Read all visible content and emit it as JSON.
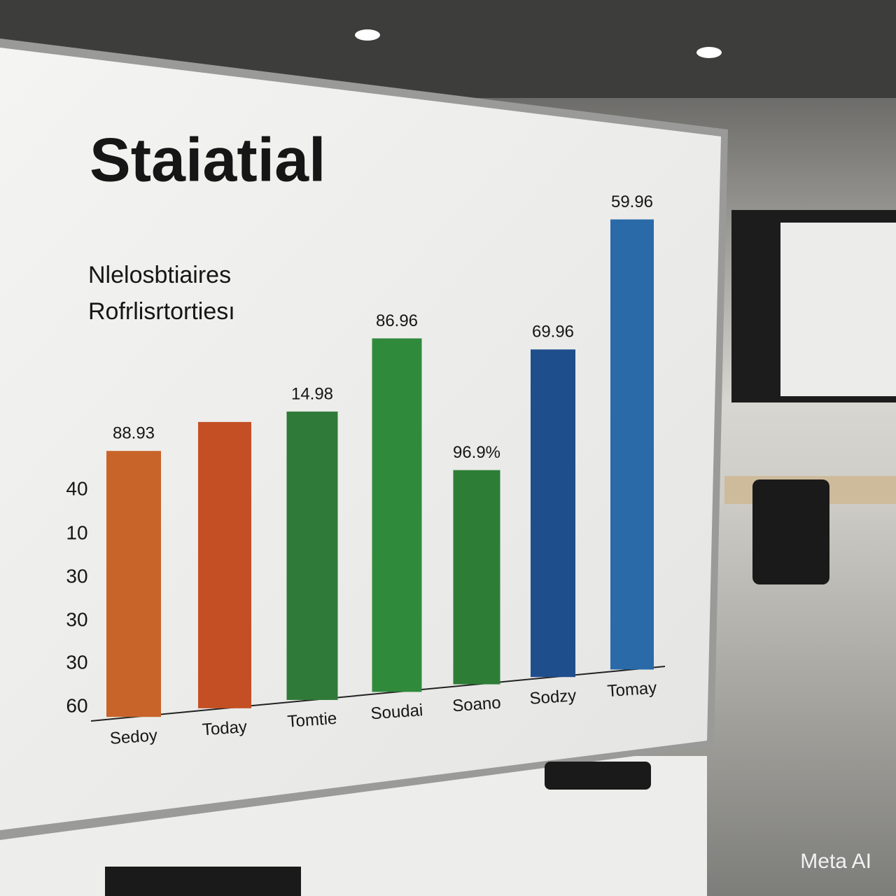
{
  "chart_data": {
    "type": "bar",
    "title": "Staiatial",
    "subtitle": [
      "Nlelosbtiaires",
      "Rofrlisrtortiesı"
    ],
    "y_axis_labels": [
      "40",
      "10",
      "30",
      "30",
      "30",
      "60"
    ],
    "categories": [
      "Sedoy",
      "Today",
      "Tomtie",
      "Soudai",
      "Soano",
      "Sodzy",
      "Tomay"
    ],
    "values": [
      380,
      409,
      412,
      505,
      306,
      468,
      643
    ],
    "bar_labels": [
      "88.93",
      null,
      "14.98",
      "86.96",
      "96.9%",
      "69.96",
      "59.96"
    ],
    "colors": [
      "#c8642a",
      "#c44f25",
      "#2f7a38",
      "#2f8a3c",
      "#2e7d36",
      "#1f4e8c",
      "#2a6aa8"
    ],
    "ylim": [
      0,
      700
    ]
  },
  "watermark": "Meta AI"
}
